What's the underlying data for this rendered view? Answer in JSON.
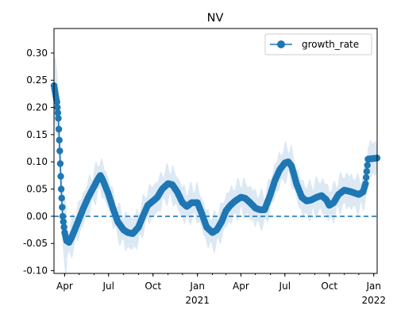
{
  "chart_data": {
    "type": "line",
    "title": "NV",
    "xlabel": "",
    "ylabel": "",
    "x_range": [
      "2020-03-10",
      "2022-01-08"
    ],
    "ylim": [
      -0.105,
      0.345
    ],
    "grid": false,
    "legend_position": "top-right",
    "x_ticks": [
      {
        "date": "2020-04-01",
        "label": "Apr",
        "sublabel": ""
      },
      {
        "date": "2020-07-01",
        "label": "Jul",
        "sublabel": ""
      },
      {
        "date": "2020-10-01",
        "label": "Oct",
        "sublabel": ""
      },
      {
        "date": "2021-01-01",
        "label": "Jan",
        "sublabel": "2021"
      },
      {
        "date": "2021-04-01",
        "label": "Apr",
        "sublabel": ""
      },
      {
        "date": "2021-07-01",
        "label": "Jul",
        "sublabel": ""
      },
      {
        "date": "2021-10-01",
        "label": "Oct",
        "sublabel": ""
      },
      {
        "date": "2022-01-01",
        "label": "Jan",
        "sublabel": "2022"
      }
    ],
    "y_ticks": [
      "-0.10",
      "-0.05",
      "0.00",
      "0.05",
      "0.10",
      "0.15",
      "0.20",
      "0.25",
      "0.30"
    ],
    "reference_line": {
      "y": 0.0,
      "style": "dashed",
      "color": "#1f77b4"
    },
    "series": [
      {
        "name": "growth_rate",
        "color": "#1f77b4",
        "marker": "circle",
        "band_color": "#dce9f5",
        "points": [
          [
            "2020-03-10",
            0.24
          ],
          [
            "2020-03-13",
            0.225
          ],
          [
            "2020-03-16",
            0.21
          ],
          [
            "2020-03-19",
            0.18
          ],
          [
            "2020-03-22",
            0.12
          ],
          [
            "2020-03-25",
            0.05
          ],
          [
            "2020-03-28",
            0.0
          ],
          [
            "2020-04-01",
            -0.03
          ],
          [
            "2020-04-05",
            -0.045
          ],
          [
            "2020-04-10",
            -0.048
          ],
          [
            "2020-04-15",
            -0.04
          ],
          [
            "2020-04-22",
            -0.025
          ],
          [
            "2020-05-01",
            -0.005
          ],
          [
            "2020-05-10",
            0.015
          ],
          [
            "2020-05-20",
            0.035
          ],
          [
            "2020-06-01",
            0.055
          ],
          [
            "2020-06-10",
            0.07
          ],
          [
            "2020-06-14",
            0.075
          ],
          [
            "2020-06-20",
            0.065
          ],
          [
            "2020-07-01",
            0.04
          ],
          [
            "2020-07-10",
            0.015
          ],
          [
            "2020-07-20",
            -0.01
          ],
          [
            "2020-08-01",
            -0.025
          ],
          [
            "2020-08-10",
            -0.03
          ],
          [
            "2020-08-20",
            -0.032
          ],
          [
            "2020-09-01",
            -0.02
          ],
          [
            "2020-09-10",
            0.0
          ],
          [
            "2020-09-20",
            0.02
          ],
          [
            "2020-10-01",
            0.028
          ],
          [
            "2020-10-10",
            0.035
          ],
          [
            "2020-10-20",
            0.05
          ],
          [
            "2020-11-01",
            0.06
          ],
          [
            "2020-11-10",
            0.058
          ],
          [
            "2020-11-20",
            0.045
          ],
          [
            "2020-12-01",
            0.025
          ],
          [
            "2020-12-10",
            0.018
          ],
          [
            "2020-12-20",
            0.025
          ],
          [
            "2021-01-01",
            0.025
          ],
          [
            "2021-01-10",
            0.005
          ],
          [
            "2021-01-20",
            -0.02
          ],
          [
            "2021-02-01",
            -0.03
          ],
          [
            "2021-02-10",
            -0.025
          ],
          [
            "2021-02-20",
            -0.01
          ],
          [
            "2021-03-01",
            0.01
          ],
          [
            "2021-03-10",
            0.02
          ],
          [
            "2021-03-20",
            0.028
          ],
          [
            "2021-04-01",
            0.035
          ],
          [
            "2021-04-10",
            0.033
          ],
          [
            "2021-04-20",
            0.025
          ],
          [
            "2021-05-01",
            0.015
          ],
          [
            "2021-05-10",
            0.012
          ],
          [
            "2021-05-20",
            0.012
          ],
          [
            "2021-06-01",
            0.04
          ],
          [
            "2021-06-10",
            0.065
          ],
          [
            "2021-06-20",
            0.085
          ],
          [
            "2021-07-01",
            0.098
          ],
          [
            "2021-07-08",
            0.1
          ],
          [
            "2021-07-15",
            0.092
          ],
          [
            "2021-07-25",
            0.06
          ],
          [
            "2021-08-05",
            0.035
          ],
          [
            "2021-08-15",
            0.028
          ],
          [
            "2021-08-25",
            0.03
          ],
          [
            "2021-09-05",
            0.035
          ],
          [
            "2021-09-15",
            0.038
          ],
          [
            "2021-09-25",
            0.03
          ],
          [
            "2021-10-01",
            0.02
          ],
          [
            "2021-10-10",
            0.025
          ],
          [
            "2021-10-20",
            0.04
          ],
          [
            "2021-11-01",
            0.048
          ],
          [
            "2021-11-15",
            0.045
          ],
          [
            "2021-12-01",
            0.04
          ],
          [
            "2021-12-10",
            0.045
          ],
          [
            "2021-12-15",
            0.06
          ],
          [
            "2021-12-20",
            0.105
          ],
          [
            "2022-01-08",
            0.107
          ]
        ]
      }
    ]
  }
}
